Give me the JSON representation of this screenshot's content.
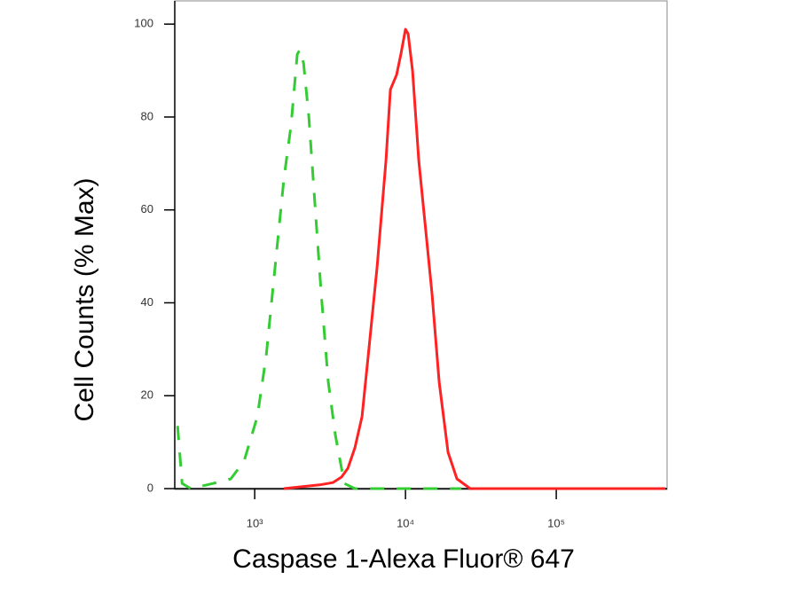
{
  "chart_data": {
    "type": "line",
    "xlabel": "Caspase 1-Alexa Fluor® 647",
    "ylabel": "Cell Counts (% Max)",
    "xscale": "log",
    "xlim": [
      295,
      543000
    ],
    "ylim": [
      0,
      105
    ],
    "xticks": [
      {
        "value": 1000,
        "label": "10³"
      },
      {
        "value": 10000,
        "label": "10⁴"
      },
      {
        "value": 100000,
        "label": "10⁵"
      }
    ],
    "yticks": [
      0,
      20,
      40,
      60,
      80,
      100
    ],
    "series": [
      {
        "color": "#33cc33",
        "linestyle": "dashed",
        "x": [
          308,
          330,
          377,
          529,
          694,
          850,
          1041,
          1192,
          1365,
          1563,
          1742,
          1916,
          1995,
          2108,
          2284,
          2512,
          2762,
          3078,
          3430,
          3930,
          4620,
          23490
        ],
        "values": [
          13.5,
          1.1,
          0,
          1.1,
          2.1,
          5.9,
          15.5,
          28.6,
          47.7,
          66.8,
          78.2,
          93.5,
          94.5,
          91.6,
          80.2,
          61.1,
          42.0,
          22.9,
          11.5,
          1.1,
          0,
          0
        ]
      },
      {
        "color": "#ff2222",
        "linestyle": "solid",
        "x": [
          1563,
          2050,
          2690,
          3300,
          3770,
          4150,
          4620,
          5150,
          5660,
          6480,
          7420,
          7940,
          8730,
          9350,
          10000,
          10420,
          11140,
          12250,
          13650,
          15000,
          16740,
          19150,
          21930,
          26860,
          69300,
          529000
        ],
        "values": [
          0,
          0.4,
          0.8,
          1.3,
          2.5,
          4.4,
          8.8,
          15.5,
          28.6,
          47.7,
          70.6,
          85.9,
          89.1,
          93.7,
          98.9,
          97.9,
          89.9,
          70.6,
          55.3,
          42.0,
          22.9,
          7.8,
          2.1,
          0,
          0,
          0
        ]
      }
    ]
  }
}
